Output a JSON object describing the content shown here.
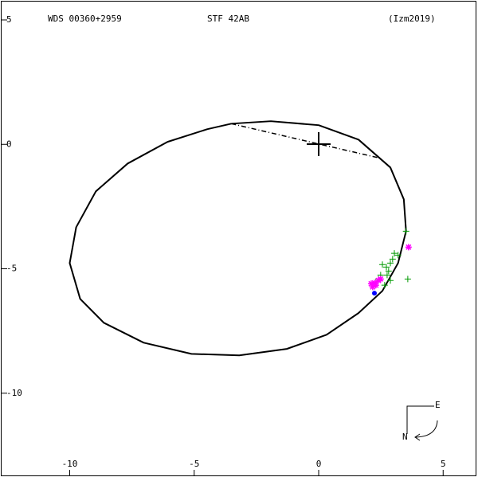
{
  "chart_data": {
    "type": "orbit",
    "title": "WDS 00360+2959",
    "subtitle": "STF  42AB",
    "reference": "(Izm2019)",
    "xlim": [
      -12.8,
      6.4
    ],
    "ylim": [
      -13.4,
      5.8
    ],
    "xticks": [
      -10,
      -5,
      0,
      5
    ],
    "yticks": [
      5,
      0,
      -5,
      -10
    ],
    "orbit": {
      "color": "#000000",
      "x": [
        -3.51,
        -1.92,
        0,
        1.6,
        2.88,
        3.42,
        3.51,
        3.19,
        2.56,
        1.6,
        0.32,
        -1.28,
        -3.19,
        -5.11,
        -7.03,
        -8.63,
        -9.58,
        -10,
        -9.74,
        -8.95,
        -7.67,
        -6.07,
        -4.47,
        -3.51
      ],
      "y": [
        0.83,
        0.93,
        0.77,
        0.19,
        -0.93,
        -2.21,
        -3.49,
        -4.77,
        -5.89,
        -6.78,
        -7.65,
        -8.22,
        -8.48,
        -8.42,
        -7.97,
        -7.17,
        -6.21,
        -4.77,
        -3.33,
        -1.89,
        -0.77,
        0.1,
        0.61,
        0.83
      ]
    },
    "line_of_nodes": {
      "x": [
        -3.51,
        2.4
      ],
      "y": [
        0.83,
        -0.54
      ]
    },
    "series": [
      {
        "marker": "+",
        "color": "#009900",
        "x": [
          3.51,
          3.58,
          3.04,
          2.88,
          2.72,
          2.56,
          2.81,
          2.49,
          2.88,
          2.4,
          2.65,
          2.24,
          3.19,
          2.97,
          2.75
        ],
        "values": [
          -3.49,
          -5.41,
          -4.38,
          -4.77,
          -4.93,
          -4.83,
          -5.09,
          -5.25,
          -5.47,
          -5.41,
          -5.66,
          -5.57,
          -4.45,
          -4.61,
          -5.25
        ]
      },
      {
        "marker": "*",
        "color": "#ff00ff",
        "x": [
          3.61,
          2.24,
          2.17,
          2.4,
          2.3,
          2.49,
          2.11
        ],
        "values": [
          -4.13,
          -5.57,
          -5.73,
          -5.47,
          -5.66,
          -5.41,
          -5.6
        ]
      },
      {
        "marker": "dot",
        "color": "#0000ff",
        "x": [
          2.24
        ],
        "values": [
          -5.98
        ]
      }
    ],
    "compass": {
      "east": "E",
      "north": "N"
    }
  }
}
